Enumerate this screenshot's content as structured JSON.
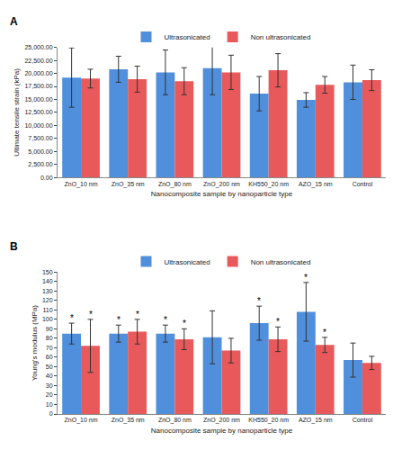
{
  "chart_data": [
    {
      "type": "bar",
      "title": "A",
      "x_label": "Nanocomposite sample by nanoparticle type",
      "y_label": "Ultimate tensile strain (kPa)",
      "categories": [
        "ZnO_10 nm",
        "ZnO_35 nm",
        "ZnO_80 nm",
        "ZnO_200 nm",
        "KH550_20 nm",
        "AZO_15 nm",
        "Control"
      ],
      "series": [
        {
          "name": "Ultrasonicated",
          "color": "#4f8fdc",
          "values": [
            19200,
            20800,
            20200,
            21000,
            16100,
            14900,
            18300
          ],
          "errors": [
            5700,
            2500,
            4300,
            5100,
            3300,
            1400,
            3300
          ]
        },
        {
          "name": "Non ultrasonicated",
          "color": "#e8595b",
          "values": [
            19000,
            18900,
            18500,
            20200,
            20600,
            17800,
            18700
          ],
          "errors": [
            1800,
            2500,
            2600,
            3300,
            3200,
            1600,
            2000
          ]
        }
      ],
      "ylim": [
        0,
        25000
      ],
      "yticks": [
        {
          "value": 0,
          "label": "0.00"
        },
        {
          "value": 2500,
          "label": "2,500.00"
        },
        {
          "value": 5000,
          "label": "5,000.00"
        },
        {
          "value": 7500,
          "label": "7,500.00"
        },
        {
          "value": 10000,
          "label": "10,000.00"
        },
        {
          "value": 12500,
          "label": "12,500.00"
        },
        {
          "value": 15000,
          "label": "15,000.00"
        },
        {
          "value": 17500,
          "label": "17,500.00"
        },
        {
          "value": 20000,
          "label": "20,000.00"
        },
        {
          "value": 22500,
          "label": "22,500.00"
        },
        {
          "value": 25000,
          "label": "25,000.00"
        }
      ],
      "grid": false,
      "legend": "top",
      "annotations": []
    },
    {
      "type": "bar",
      "title": "B",
      "x_label": "Nanocomposite sample by nanoparticle type",
      "y_label": "Young's modulus (MPa)",
      "categories": [
        "ZnO_10 nm",
        "ZnO_35 nm",
        "ZnO_80 nm",
        "ZnO_200 nm",
        "KH550_20 nm",
        "AZO_15 nm",
        "Control"
      ],
      "series": [
        {
          "name": "Ultrasonicated",
          "color": "#4f8fdc",
          "values": [
            85,
            85,
            85,
            81,
            96,
            108,
            57
          ],
          "errors": [
            11,
            9,
            9,
            28,
            18,
            31,
            18
          ]
        },
        {
          "name": "Non ultrasonicated",
          "color": "#e8595b",
          "values": [
            72,
            87,
            79,
            67,
            79,
            73,
            54
          ],
          "errors": [
            28,
            13,
            11,
            13,
            13,
            8,
            7
          ]
        }
      ],
      "ylim": [
        0,
        150
      ],
      "yticks": [
        0,
        10,
        20,
        30,
        40,
        50,
        60,
        70,
        80,
        90,
        100,
        110,
        120,
        130,
        140,
        150
      ],
      "grid": false,
      "legend": "top",
      "annotations": [
        {
          "category": "ZnO_10 nm",
          "series": "Ultrasonicated",
          "text": "*"
        },
        {
          "category": "ZnO_10 nm",
          "series": "Non ultrasonicated",
          "text": "*"
        },
        {
          "category": "ZnO_35 nm",
          "series": "Ultrasonicated",
          "text": "*"
        },
        {
          "category": "ZnO_35 nm",
          "series": "Non ultrasonicated",
          "text": "*"
        },
        {
          "category": "ZnO_80 nm",
          "series": "Ultrasonicated",
          "text": "*"
        },
        {
          "category": "ZnO_80 nm",
          "series": "Non ultrasonicated",
          "text": "*"
        },
        {
          "category": "KH550_20 nm",
          "series": "Ultrasonicated",
          "text": "*"
        },
        {
          "category": "KH550_20 nm",
          "series": "Non ultrasonicated",
          "text": "*"
        },
        {
          "category": "AZO_15 nm",
          "series": "Ultrasonicated",
          "text": "*"
        },
        {
          "category": "AZO_15 nm",
          "series": "Non ultrasonicated",
          "text": "*"
        }
      ]
    }
  ]
}
